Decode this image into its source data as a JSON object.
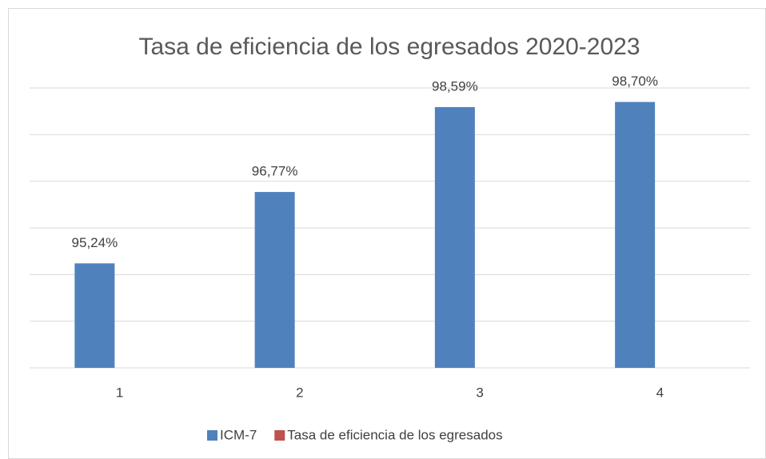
{
  "chart_data": {
    "type": "bar",
    "title": "Tasa de eficiencia de los egresados 2020-2023",
    "categories": [
      "1",
      "2",
      "3",
      "4"
    ],
    "series": [
      {
        "name": "ICM-7",
        "color": "#4f81bd",
        "values": [
          95.24,
          96.77,
          98.59,
          98.7
        ],
        "value_labels": [
          "95,24%",
          "96,77%",
          "98,59%",
          "98,70%"
        ]
      },
      {
        "name": "Tasa de eficiencia de los egresados",
        "color": "#c0504d",
        "values": [
          null,
          null,
          null,
          null
        ]
      }
    ],
    "ylim": [
      93,
      99
    ],
    "yticks": [
      93,
      94,
      95,
      96,
      97,
      98,
      99
    ],
    "grid": true,
    "legend": "bottom"
  }
}
